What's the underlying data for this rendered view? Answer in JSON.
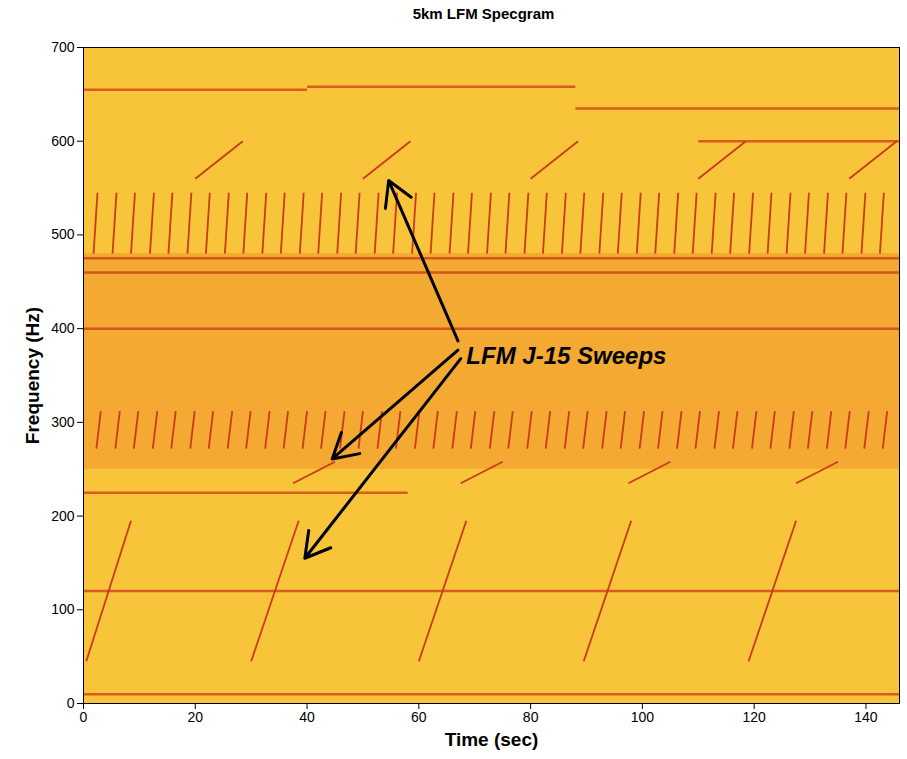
{
  "chart_data": {
    "type": "spectrogram",
    "title": "5km LFM Specgram",
    "xlabel": "Time (sec)",
    "ylabel": "Frequency (Hz)",
    "xlim": [
      0,
      146
    ],
    "xticks": [
      0,
      20,
      40,
      60,
      80,
      100,
      120,
      140
    ],
    "ylim": [
      0,
      700
    ],
    "yticks": [
      0,
      100,
      200,
      300,
      400,
      500,
      600,
      700
    ],
    "grid": false,
    "color": "#cc3a1a",
    "band_f": [
      250,
      480
    ],
    "tones": [
      {
        "f": 225,
        "t": [
          0,
          58
        ]
      },
      {
        "f": 400,
        "t": [
          0,
          146
        ]
      },
      {
        "f": 460,
        "t": [
          0,
          146
        ]
      },
      {
        "f": 475,
        "t": [
          0,
          146
        ]
      },
      {
        "f": 10,
        "t": [
          0,
          146
        ]
      },
      {
        "f": 120,
        "t": [
          0,
          146
        ]
      },
      {
        "f": 655,
        "t": [
          0,
          40
        ]
      },
      {
        "f": 658,
        "t": [
          40,
          88
        ]
      },
      {
        "f": 635,
        "t": [
          88,
          146
        ]
      },
      {
        "f": 600,
        "t": [
          110,
          146
        ]
      }
    ],
    "sweeps": [
      {
        "f": [
          45,
          195
        ],
        "t": [
          [
            0.5,
            8.5
          ],
          [
            30,
            38.5
          ],
          [
            60,
            68.5
          ],
          [
            89.5,
            98
          ],
          [
            119,
            127.5
          ]
        ]
      },
      {
        "f": [
          235,
          258
        ],
        "t": [
          [
            37.5,
            45
          ],
          [
            67.5,
            75
          ],
          [
            97.5,
            105
          ],
          [
            127.5,
            135
          ]
        ]
      },
      {
        "f": [
          560,
          600
        ],
        "t": [
          [
            20,
            28.5
          ],
          [
            50,
            58.5
          ],
          [
            80,
            88.5
          ],
          [
            110,
            118.5
          ],
          [
            137,
            145.5
          ]
        ]
      },
      {
        "f": [
          480,
          545
        ],
        "t": [
          [
            1.8,
            2.5
          ],
          [
            5.2,
            5.9
          ],
          [
            8.5,
            9.2
          ],
          [
            11.9,
            12.6
          ],
          [
            15.2,
            15.9
          ],
          [
            18.6,
            19.3
          ],
          [
            21.9,
            22.6
          ],
          [
            25.3,
            26.0
          ],
          [
            28.6,
            29.3
          ],
          [
            32.0,
            32.7
          ],
          [
            35.3,
            36.0
          ],
          [
            38.7,
            39.4
          ],
          [
            42.0,
            42.7
          ],
          [
            45.4,
            46.1
          ],
          [
            48.7,
            49.4
          ],
          [
            52.1,
            52.8
          ],
          [
            55.4,
            56.1
          ],
          [
            58.8,
            59.5
          ],
          [
            62.1,
            62.8
          ],
          [
            65.5,
            66.2
          ],
          [
            68.8,
            69.5
          ],
          [
            72.2,
            72.9
          ],
          [
            75.5,
            76.2
          ],
          [
            78.9,
            79.6
          ],
          [
            82.2,
            82.9
          ],
          [
            85.6,
            86.3
          ],
          [
            88.9,
            89.6
          ],
          [
            92.3,
            93.0
          ],
          [
            95.6,
            96.3
          ],
          [
            99.0,
            99.7
          ],
          [
            102.3,
            103.0
          ],
          [
            105.7,
            106.4
          ],
          [
            109.0,
            109.7
          ],
          [
            112.4,
            113.1
          ],
          [
            115.7,
            116.4
          ],
          [
            119.1,
            119.8
          ],
          [
            122.4,
            123.1
          ],
          [
            125.8,
            126.5
          ],
          [
            129.1,
            129.8
          ],
          [
            132.5,
            133.2
          ],
          [
            135.8,
            136.5
          ],
          [
            139.2,
            139.9
          ],
          [
            142.5,
            143.2
          ]
        ]
      },
      {
        "f": [
          272,
          312
        ],
        "t": [
          [
            2.3,
            3.1
          ],
          [
            5.7,
            6.5
          ],
          [
            9.0,
            9.8
          ],
          [
            12.4,
            13.2
          ],
          [
            15.7,
            16.5
          ],
          [
            19.1,
            19.9
          ],
          [
            22.4,
            23.2
          ],
          [
            25.8,
            26.6
          ],
          [
            29.1,
            29.9
          ],
          [
            32.5,
            33.3
          ],
          [
            35.8,
            36.6
          ],
          [
            39.2,
            40.0
          ],
          [
            42.5,
            43.3
          ],
          [
            45.9,
            46.7
          ],
          [
            49.2,
            50.0
          ],
          [
            52.6,
            53.4
          ],
          [
            55.9,
            56.7
          ],
          [
            59.3,
            60.1
          ],
          [
            62.6,
            63.4
          ],
          [
            66.0,
            66.8
          ],
          [
            69.3,
            70.1
          ],
          [
            72.7,
            73.5
          ],
          [
            76.0,
            76.8
          ],
          [
            79.4,
            80.2
          ],
          [
            82.7,
            83.5
          ],
          [
            86.1,
            86.9
          ],
          [
            89.4,
            90.2
          ],
          [
            92.8,
            93.6
          ],
          [
            96.1,
            96.9
          ],
          [
            99.5,
            100.3
          ],
          [
            102.8,
            103.6
          ],
          [
            106.2,
            107.0
          ],
          [
            109.5,
            110.3
          ],
          [
            112.9,
            113.7
          ],
          [
            116.2,
            117.0
          ],
          [
            119.6,
            120.4
          ],
          [
            122.9,
            123.7
          ],
          [
            126.3,
            127.1
          ],
          [
            129.6,
            130.4
          ],
          [
            133.0,
            133.8
          ],
          [
            136.3,
            137.1
          ],
          [
            139.7,
            140.5
          ],
          [
            143.0,
            143.8
          ]
        ]
      }
    ],
    "annotation": {
      "text": "LFM J-15 Sweeps",
      "x": 68.5,
      "y": 371,
      "arrows": [
        {
          "from": [
            67,
            387
          ],
          "to": [
            54.6,
            558
          ]
        },
        {
          "from": [
            67,
            377
          ],
          "to": [
            44.5,
            261
          ]
        },
        {
          "from": [
            67.5,
            368
          ],
          "to": [
            39.6,
            155
          ]
        }
      ]
    }
  }
}
